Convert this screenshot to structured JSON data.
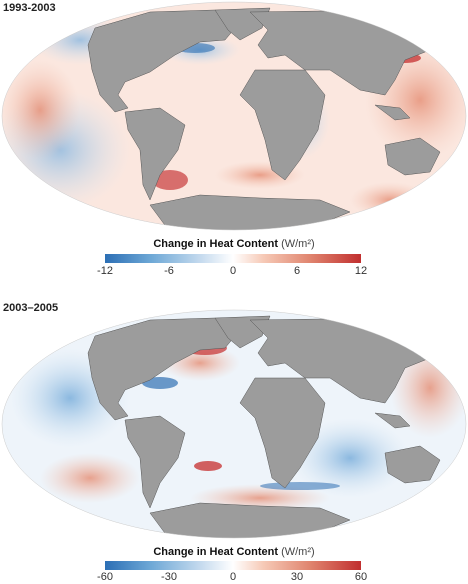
{
  "panels": [
    {
      "title": "1993-2003",
      "legend": {
        "label": "Change in Heat Content",
        "unit": "(W/m²)",
        "ticks": [
          "-12",
          "-6",
          "0",
          "6",
          "12"
        ],
        "colors": [
          "#2c6fb5",
          "#ffffff",
          "#c12f2f"
        ]
      }
    },
    {
      "title": "2003–2005",
      "legend": {
        "label": "Change in Heat Content",
        "unit": "(W/m²)",
        "ticks": [
          "-60",
          "-30",
          "0",
          "30",
          "60"
        ],
        "colors": [
          "#2c6fb5",
          "#ffffff",
          "#c12f2f"
        ]
      }
    }
  ],
  "colors": {
    "land": "#9c9c9c",
    "ocean": "#ffffff",
    "warm": "#e9a08a",
    "cool": "#9fc4e4",
    "strong_warm": "#c83a3a",
    "strong_cool": "#2f6fb2"
  }
}
